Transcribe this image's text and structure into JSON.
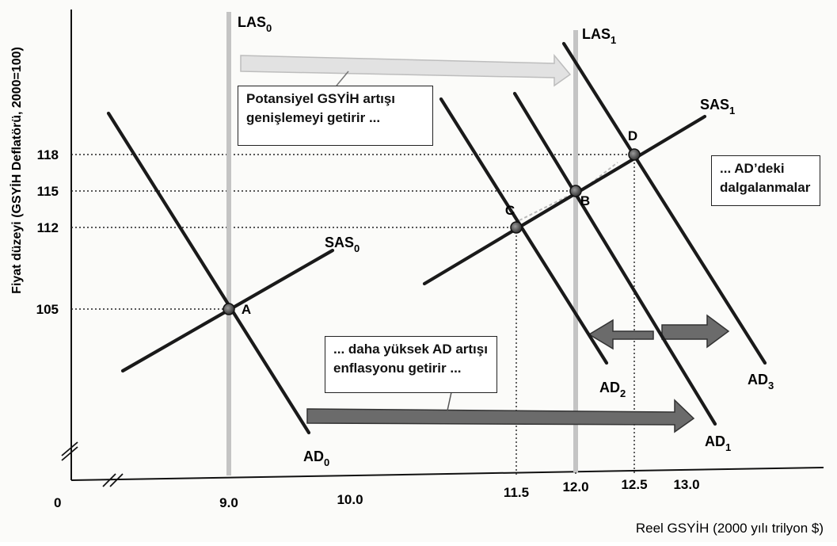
{
  "chart_data": {
    "type": "line",
    "ylabel": "Fiyat düzeyi (GSYİH Deflatörü, 2000=100)",
    "xlabel": "Reel GSYİH (2000 yılı trilyon $)",
    "origin_label": "0",
    "x_ticks": [
      "9.0",
      "10.0",
      "11.5",
      "12.0",
      "12.5",
      "13.0"
    ],
    "y_ticks": [
      "105",
      "112",
      "115",
      "118"
    ],
    "points": [
      {
        "label": "A",
        "x": 9.0,
        "y": 105
      },
      {
        "label": "B",
        "x": 12.0,
        "y": 115
      },
      {
        "label": "C",
        "x": 11.5,
        "y": 112
      },
      {
        "label": "D",
        "x": 12.5,
        "y": 118
      }
    ],
    "curves": {
      "LAS0": {
        "base": "LAS",
        "sub": "0"
      },
      "LAS1": {
        "base": "LAS",
        "sub": "1"
      },
      "SAS0": {
        "base": "SAS",
        "sub": "0"
      },
      "SAS1": {
        "base": "SAS",
        "sub": "1"
      },
      "AD0": {
        "base": "AD",
        "sub": "0"
      },
      "AD1": {
        "base": "AD",
        "sub": "1"
      },
      "AD2": {
        "base": "AD",
        "sub": "2"
      },
      "AD3": {
        "base": "AD",
        "sub": "3"
      }
    },
    "annotations": {
      "potential": [
        "Potansiyel GSYİH artışı",
        "genişlemeyi getirir ..."
      ],
      "inflation": [
        "... daha yüksek AD artışı",
        "enflasyonu getirir ..."
      ],
      "fluctuations": [
        "... AD’deki",
        "dalgalanmalar"
      ]
    },
    "colors": {
      "curve": "#1a1a1a",
      "las": "#c4c4c4",
      "arrow": "#6b6b6b",
      "light_arrow": "#e2e2e2"
    }
  }
}
